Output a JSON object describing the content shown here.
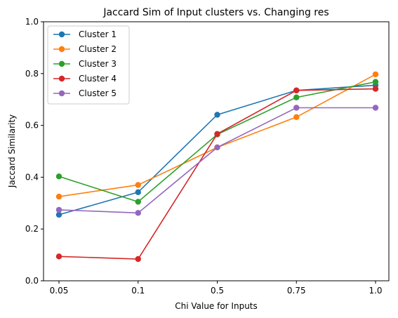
{
  "chart_data": {
    "type": "line",
    "title": "Jaccard Sim of Input clusters vs. Changing res",
    "xlabel": "Chi Value for Inputs",
    "ylabel": "Jaccard Similarity",
    "categories": [
      "0.05",
      "0.1",
      "0.5",
      "0.75",
      "1.0"
    ],
    "ylim": [
      0.0,
      1.0
    ],
    "yticks": [
      "0.0",
      "0.2",
      "0.4",
      "0.6",
      "0.8",
      "1.0"
    ],
    "legend_position": "top-left",
    "grid": false,
    "series": [
      {
        "name": "Cluster 1",
        "color": "#1f77b4",
        "values": [
          0.255,
          0.342,
          0.641,
          0.735,
          0.755
        ]
      },
      {
        "name": "Cluster 2",
        "color": "#ff7f0e",
        "values": [
          0.325,
          0.37,
          0.515,
          0.632,
          0.797
        ]
      },
      {
        "name": "Cluster 3",
        "color": "#2ca02c",
        "values": [
          0.403,
          0.305,
          0.565,
          0.708,
          0.768
        ]
      },
      {
        "name": "Cluster 4",
        "color": "#d62728",
        "values": [
          0.094,
          0.084,
          0.567,
          0.735,
          0.741
        ]
      },
      {
        "name": "Cluster 5",
        "color": "#9467bd",
        "values": [
          0.274,
          0.262,
          0.515,
          0.668,
          0.668
        ]
      }
    ]
  }
}
